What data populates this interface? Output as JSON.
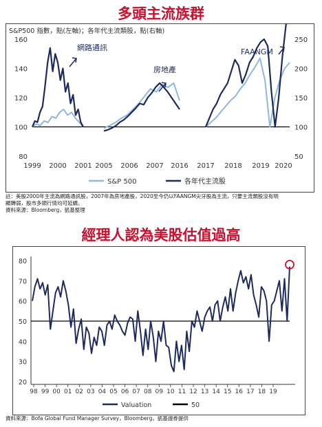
{
  "chart1": {
    "title": "多頭主流族群",
    "subtitle": "S&P500 指數，點(左軸)；各年代主流類股，點(右軸)",
    "left_ticks": [
      80,
      100,
      120,
      140,
      160
    ],
    "right_ticks": [
      50,
      100,
      150,
      200,
      250
    ],
    "x_ticks": [
      "1999",
      "2000",
      "2001",
      "2005",
      "2006",
      "2007",
      "2016",
      "2017",
      "2018",
      "2019",
      "2020"
    ],
    "annotations": [
      "網路通訊",
      "房地產",
      "FAANGM"
    ],
    "legend": [
      "S&P 500",
      "各年代主流股"
    ],
    "notes": [
      "註：美股2000年主流為網路通訊股，2007年為房地產股，2020至今仍以FAANGM尖牙股為主流，只要主流類股沒有明",
      "顯轉弱，股市多頭行情均可延續。"
    ],
    "source": "資料來源：Bloomberg，凱基整理",
    "colors": {
      "sp500": "#8db6e0",
      "sector": "#1c2a5c",
      "base": "#000000"
    }
  },
  "chart2": {
    "title": "經理人認為美股估值過高",
    "y_ticks": [
      20,
      30,
      40,
      50,
      60,
      70,
      80
    ],
    "x_ticks": [
      "98",
      "99",
      "00",
      "01",
      "02",
      "03",
      "04",
      "05",
      "06",
      "07",
      "08",
      "09",
      "10",
      "11",
      "12",
      "13",
      "14",
      "15",
      "16",
      "17",
      "18",
      "19"
    ],
    "legend": [
      "Valuation",
      "50"
    ],
    "source": "資料來源：Bofa Global Fund Manager Survey，Bloomberg，凱基證券提供",
    "colors": {
      "valuation": "#1c2a5c",
      "ref": "#000000",
      "marker": "#c8102e"
    }
  },
  "chart_data": [
    {
      "type": "line",
      "title": "多頭主流族群",
      "subtitle": "S&P500 指數，點(左軸)；各年代主流類股，點(右軸)",
      "ylim_left": [
        80,
        160
      ],
      "ylim_right": [
        50,
        250
      ],
      "x_ticks": [
        "1999",
        "2000",
        "2001",
        "2005",
        "2006",
        "2007",
        "2016",
        "2017",
        "2018",
        "2019",
        "2020"
      ],
      "series": [
        {
          "name": "S&P 500",
          "axis": "left",
          "segments": [
            [
              100,
              102,
              101,
              104,
              103,
              107,
              106,
              110,
              112,
              108,
              110,
              106,
              103,
              100
            ],
            [
              99,
              101,
              103,
              106,
              108,
              112,
              116,
              121,
              126,
              124,
              129,
              127,
              130,
              118
            ],
            [
              100,
              103,
              106,
              110,
              114,
              118,
              121,
              126,
              130,
              136,
              141,
              147,
              132,
              100,
              120,
              132,
              140,
              144
            ]
          ]
        },
        {
          "name": "各年代主流股",
          "axis": "right",
          "segments": [
            [
              100,
              110,
              108,
              125,
              135,
              170,
              210,
              235,
              195,
              225,
              210,
              180,
              200,
              160,
              175,
              140,
              155,
              120,
              130,
              108,
              100
            ],
            [
              93,
              95,
              98,
              102,
              108,
              112,
              118,
              125,
              132,
              140,
              138,
              150,
              158,
              168,
              175,
              168,
              160,
              150,
              140,
              130
            ],
            [
              100,
              115,
              130,
              140,
              155,
              165,
              175,
              195,
              215,
              205,
              175,
              190,
              210,
              220,
              235,
              245,
              250,
              238,
              160,
              100,
              150,
              220,
              275,
              290
            ]
          ]
        },
        {
          "name": "",
          "axis": "left",
          "values": [
            100
          ]
        }
      ]
    },
    {
      "type": "line",
      "title": "經理人認為美股估值過高",
      "ylim": [
        20,
        80
      ],
      "x_ticks": [
        "98",
        "99",
        "00",
        "01",
        "02",
        "03",
        "04",
        "05",
        "06",
        "07",
        "08",
        "09",
        "10",
        "11",
        "12",
        "13",
        "14",
        "15",
        "16",
        "17",
        "18",
        "19"
      ],
      "series": [
        {
          "name": "Valuation",
          "values": [
            60,
            67,
            71,
            66,
            69,
            63,
            68,
            46,
            55,
            64,
            67,
            62,
            70,
            65,
            58,
            47,
            56,
            39,
            46,
            51,
            36,
            47,
            44,
            34,
            42,
            38,
            47,
            45,
            38,
            48,
            50,
            46,
            53,
            50,
            48,
            45,
            43,
            49,
            52,
            51,
            40,
            55,
            45,
            33,
            46,
            36,
            50,
            42,
            30,
            45,
            40,
            50,
            38,
            37,
            28,
            25,
            40,
            30,
            38,
            26,
            45,
            35,
            50,
            47,
            55,
            50,
            45,
            52,
            55,
            57,
            50,
            58,
            60,
            50,
            57,
            62,
            55,
            66,
            55,
            64,
            70,
            75,
            69,
            72,
            66,
            73,
            63,
            58,
            52,
            67,
            65,
            60,
            40,
            58,
            60,
            65,
            70,
            55,
            71,
            50,
            77
          ]
        },
        {
          "name": "50",
          "values": [
            50,
            50
          ]
        }
      ],
      "highlight": {
        "series": "Valuation",
        "value": 78
      }
    }
  ]
}
